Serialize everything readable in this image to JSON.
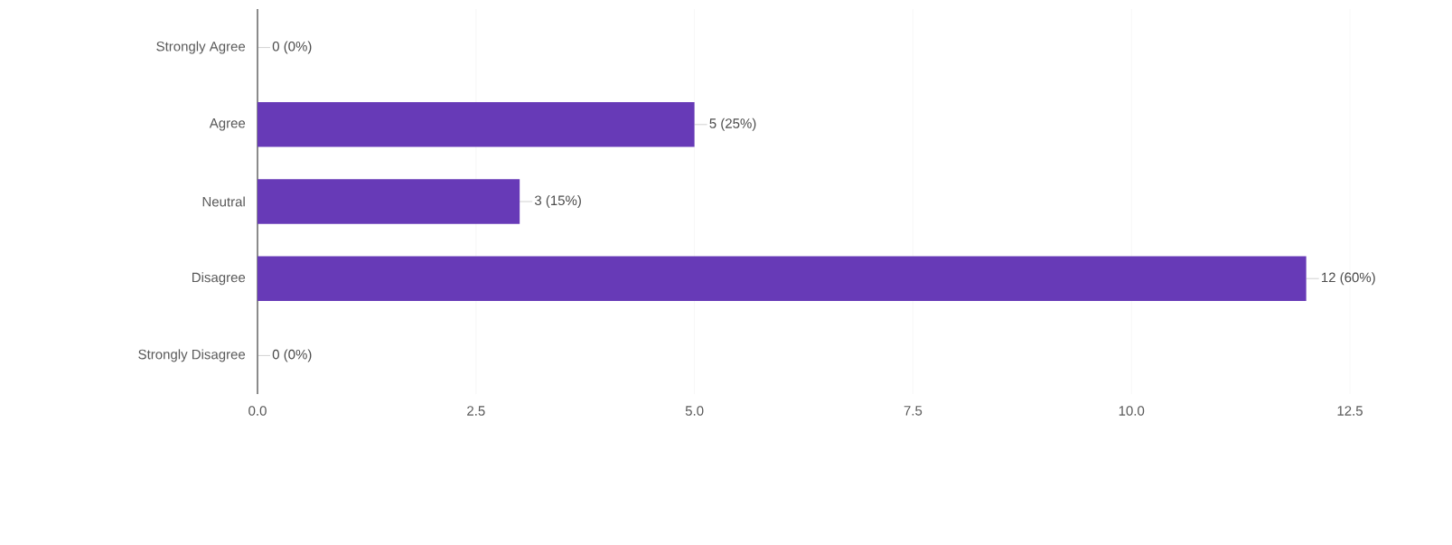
{
  "chart_data": {
    "type": "bar",
    "orientation": "horizontal",
    "categories": [
      "Strongly Agree",
      "Agree",
      "Neutral",
      "Disagree",
      "Strongly Disagree"
    ],
    "values": [
      0,
      5,
      3,
      12,
      0
    ],
    "value_labels": [
      "0 (0%)",
      "5 (25%)",
      "3 (15%)",
      "12 (60%)",
      "0 (0%)"
    ],
    "color": "#673ab7",
    "xlim": [
      0,
      12.5
    ],
    "xticks": [
      {
        "value": 0,
        "label": "0.0"
      },
      2.5,
      {
        "value": 5,
        "label": "5.0"
      },
      7.5,
      {
        "value": 10,
        "label": "10.0"
      },
      12.5
    ],
    "grid": "x"
  }
}
